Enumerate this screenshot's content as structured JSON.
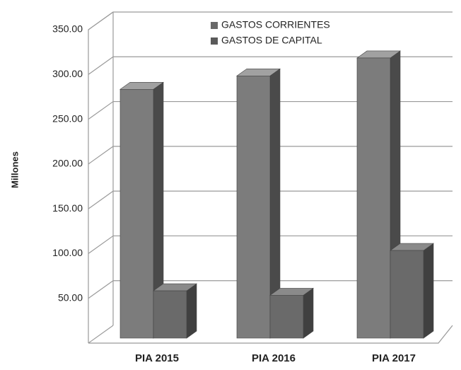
{
  "chart_data": {
    "type": "bar3d",
    "y_label": "Millones",
    "categories": [
      "PIA 2015",
      "PIA 2016",
      "PIA 2017"
    ],
    "series": [
      {
        "name": "GASTOS CORRIENTES",
        "color": "#7c7c7c",
        "values": [
          285,
          300,
          320
        ]
      },
      {
        "name": "GASTOS DE CAPITAL",
        "color": "#6a6a6a",
        "values": [
          60,
          55,
          105
        ]
      }
    ],
    "ylim": [
      0,
      350
    ],
    "yticks": [
      {
        "value": 50,
        "label": "50.00"
      },
      {
        "value": 100,
        "label": "100.00"
      },
      {
        "value": 150,
        "label": "150.00"
      },
      {
        "value": 200,
        "label": "200.00"
      },
      {
        "value": 250,
        "label": "250.00"
      },
      {
        "value": 300,
        "label": "300.00"
      },
      {
        "value": 350,
        "label": "350.00"
      }
    ],
    "grid": true
  }
}
